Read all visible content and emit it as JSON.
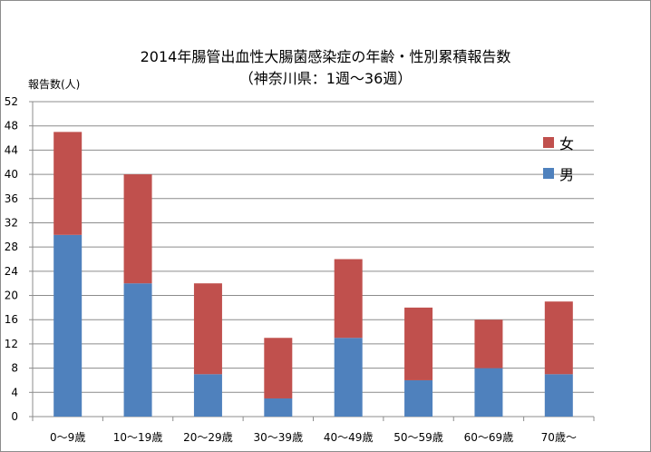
{
  "chart_data": {
    "type": "bar",
    "stacked": true,
    "title": "2014年腸管出血性大腸菌感染症の年齢・性別累積報告数",
    "subtitle": "（神奈川県：1週～36週）",
    "ylabel": "報告数(人)",
    "xlabel": "",
    "ylim": [
      0,
      52
    ],
    "yticks": [
      "0",
      "4",
      "8",
      "12",
      "16",
      "20",
      "24",
      "28",
      "32",
      "36",
      "40",
      "44",
      "48",
      "52"
    ],
    "grid": true,
    "legend_position": "right",
    "categories": [
      "0～9歳",
      "10～19歳",
      "20～29歳",
      "30～39歳",
      "40～49歳",
      "50～59歳",
      "60～69歳",
      "70歳～"
    ],
    "series": [
      {
        "name": "男",
        "color": "#4f81bd",
        "values": [
          30,
          22,
          7,
          3,
          13,
          6,
          8,
          7
        ]
      },
      {
        "name": "女",
        "color": "#c0504d",
        "values": [
          17,
          18,
          15,
          10,
          13,
          12,
          8,
          12
        ]
      }
    ]
  }
}
